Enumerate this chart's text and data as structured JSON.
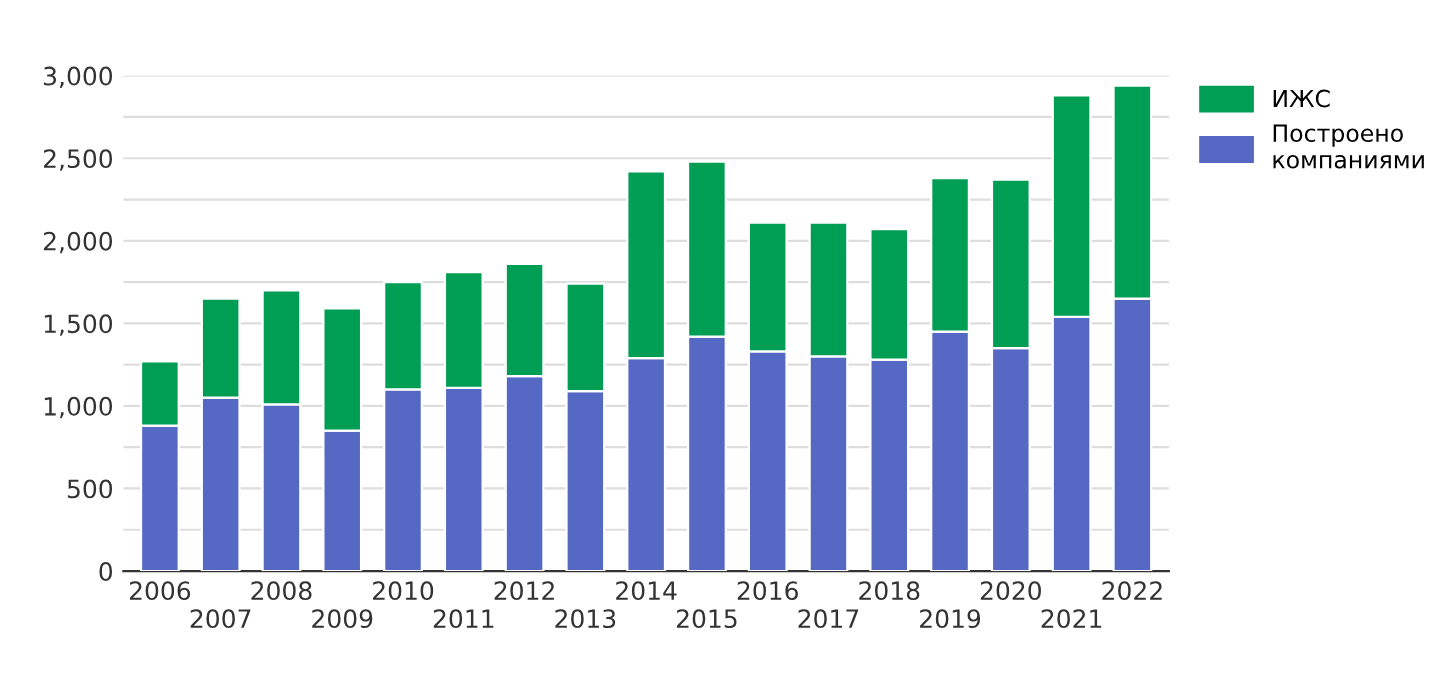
{
  "chart_data": {
    "type": "bar",
    "stacked": true,
    "categories": [
      "2006",
      "2007",
      "2008",
      "2009",
      "2010",
      "2011",
      "2012",
      "2013",
      "2014",
      "2015",
      "2016",
      "2017",
      "2018",
      "2019",
      "2020",
      "2021",
      "2022"
    ],
    "series": [
      {
        "name": "Построено компаниями",
        "color": "#5568c4",
        "values": [
          880,
          1050,
          1010,
          850,
          1100,
          1110,
          1180,
          1090,
          1290,
          1420,
          1330,
          1300,
          1280,
          1450,
          1350,
          1540,
          1650
        ]
      },
      {
        "name": "ИЖС",
        "color": "#009e55",
        "values": [
          390,
          600,
          690,
          740,
          650,
          700,
          680,
          650,
          1130,
          1060,
          780,
          810,
          790,
          930,
          1020,
          1340,
          1290
        ]
      }
    ],
    "ylim": [
      0,
      3000
    ],
    "yticks": [
      0,
      {
        "value": 250,
        "label": null
      },
      {
        "value": 500,
        "label": "500"
      },
      {
        "value": 750,
        "label": null
      },
      {
        "value": 1000,
        "label": "1,000"
      },
      {
        "value": 1250,
        "label": null
      },
      {
        "value": 1500,
        "label": "1,500"
      },
      {
        "value": 1750,
        "label": null
      },
      {
        "value": 2000,
        "label": "2,000"
      },
      {
        "value": 2250,
        "label": null
      },
      {
        "value": 2500,
        "label": "2,500"
      },
      {
        "value": 2750,
        "label": null
      },
      {
        "value": 3000,
        "label": "3,000"
      }
    ],
    "grid": "y",
    "legend": "right"
  }
}
